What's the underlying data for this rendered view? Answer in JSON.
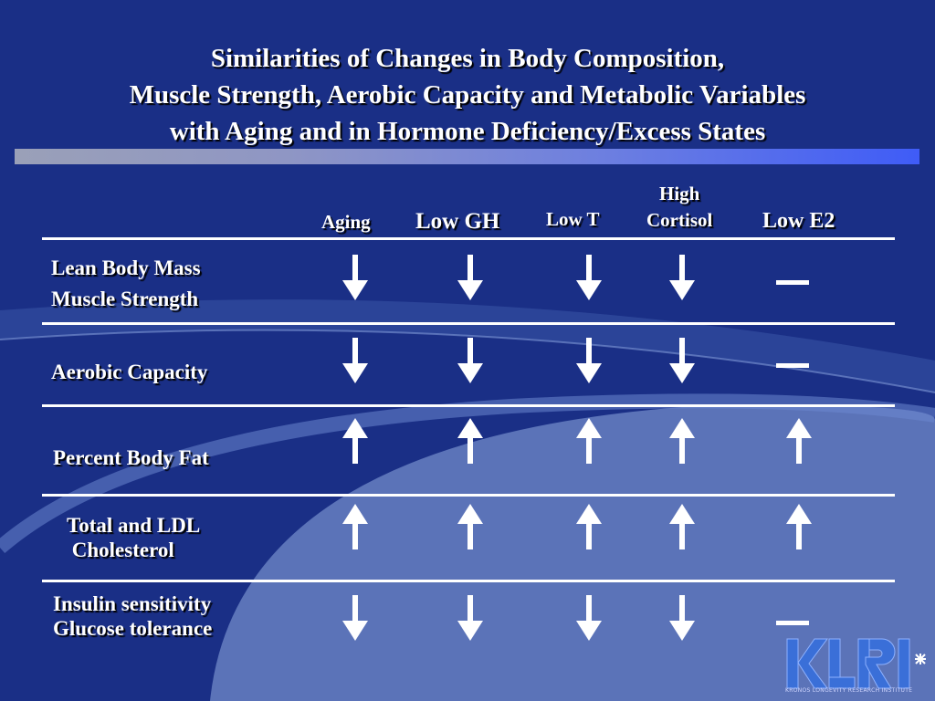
{
  "slide": {
    "title_lines": [
      "Similarities of Changes in Body Composition,",
      "Muscle Strength, Aerobic Capacity and Metabolic Variables",
      "with Aging and in Hormone Deficiency/Excess States"
    ],
    "columns": [
      "Aging",
      "Low GH",
      "Low T",
      "High\nCortisol",
      "Low E2"
    ],
    "rows": [
      {
        "label": "Lean Body Mass\nMuscle Strength",
        "cells": [
          "down",
          "down",
          "down",
          "down",
          "none"
        ]
      },
      {
        "label": "Aerobic Capacity",
        "cells": [
          "down",
          "down",
          "down",
          "down",
          "none"
        ]
      },
      {
        "label": "Percent Body Fat",
        "cells": [
          "up",
          "up",
          "up",
          "up",
          "up"
        ]
      },
      {
        "label": "Total and LDL\n Cholesterol",
        "cells": [
          "up",
          "up",
          "up",
          "up",
          "up"
        ]
      },
      {
        "label": "Insulin sensitivity\nGlucose tolerance",
        "cells": [
          "down",
          "down",
          "down",
          "down",
          "none"
        ]
      }
    ],
    "logo": {
      "text": "KLRI",
      "subtitle": "KRONOS LONGEVITY RESEARCH INSTITUTE",
      "icon": "klri-logo-icon"
    },
    "colors": {
      "background": "#1a2f86",
      "arc": "#5b73b8",
      "title_bar_end": "#3f5cf7",
      "logo": "#3a6fd8"
    }
  }
}
